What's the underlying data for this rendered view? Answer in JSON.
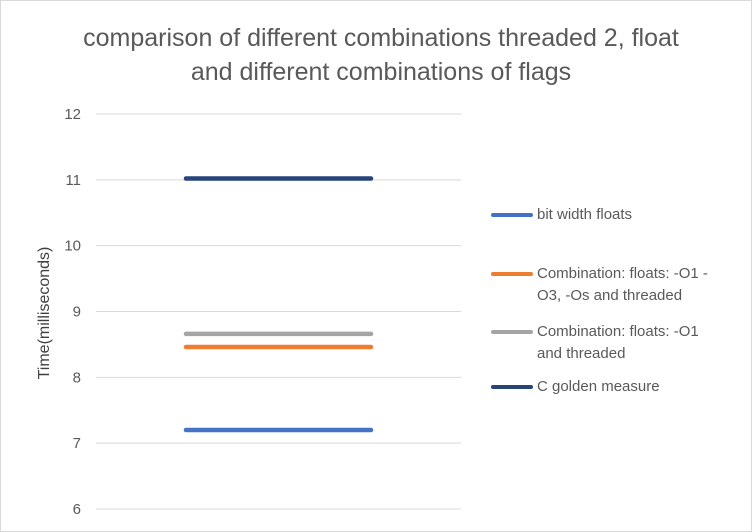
{
  "chart_data": {
    "type": "line",
    "title": "comparison of different combinations threaded 2, float and different combinations of flags",
    "xlabel": "",
    "ylabel": "Time(milliseconds)",
    "ylim": [
      6,
      12
    ],
    "yticks": [
      6,
      7,
      8,
      9,
      10,
      11,
      12
    ],
    "grid": true,
    "legend_position": "right",
    "series": [
      {
        "name": "bit width floats",
        "values": [
          7.2,
          7.2
        ],
        "color": "#4472c4"
      },
      {
        "name": "Combination: floats: -O1 -O3, -Os and threaded",
        "values": [
          8.46,
          8.46
        ],
        "color": "#ed7d31"
      },
      {
        "name": "Combination: floats: -O1 and threaded",
        "values": [
          8.66,
          8.66
        ],
        "color": "#a5a5a5"
      },
      {
        "name": "C golden measure",
        "values": [
          11.02,
          11.02
        ],
        "color": "#264478"
      }
    ]
  }
}
